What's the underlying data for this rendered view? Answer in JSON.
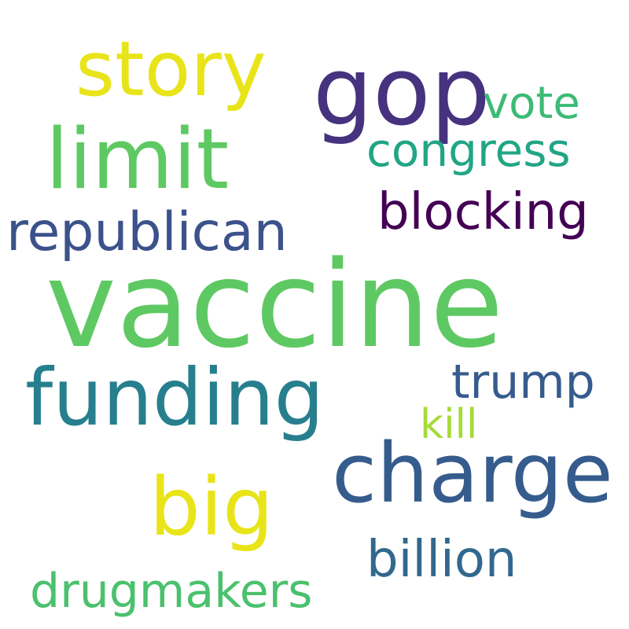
{
  "words": [
    {
      "text": "vaccine",
      "color": "#5ec962"
    },
    {
      "text": "gop",
      "color": "#46327e"
    },
    {
      "text": "charge",
      "color": "#365c8d"
    },
    {
      "text": "limit",
      "color": "#5ec962"
    },
    {
      "text": "funding",
      "color": "#277f8e"
    },
    {
      "text": "story",
      "color": "#e8e419"
    },
    {
      "text": "big",
      "color": "#e8e419"
    },
    {
      "text": "republican",
      "color": "#3b528b"
    },
    {
      "text": "blocking",
      "color": "#440154"
    },
    {
      "text": "congress",
      "color": "#21a585"
    },
    {
      "text": "billion",
      "color": "#31688e"
    },
    {
      "text": "trump",
      "color": "#365c8d"
    },
    {
      "text": "vote",
      "color": "#3bbb75"
    },
    {
      "text": "drugmakers",
      "color": "#4ac16d"
    },
    {
      "text": "kill",
      "color": "#a5db36"
    }
  ]
}
